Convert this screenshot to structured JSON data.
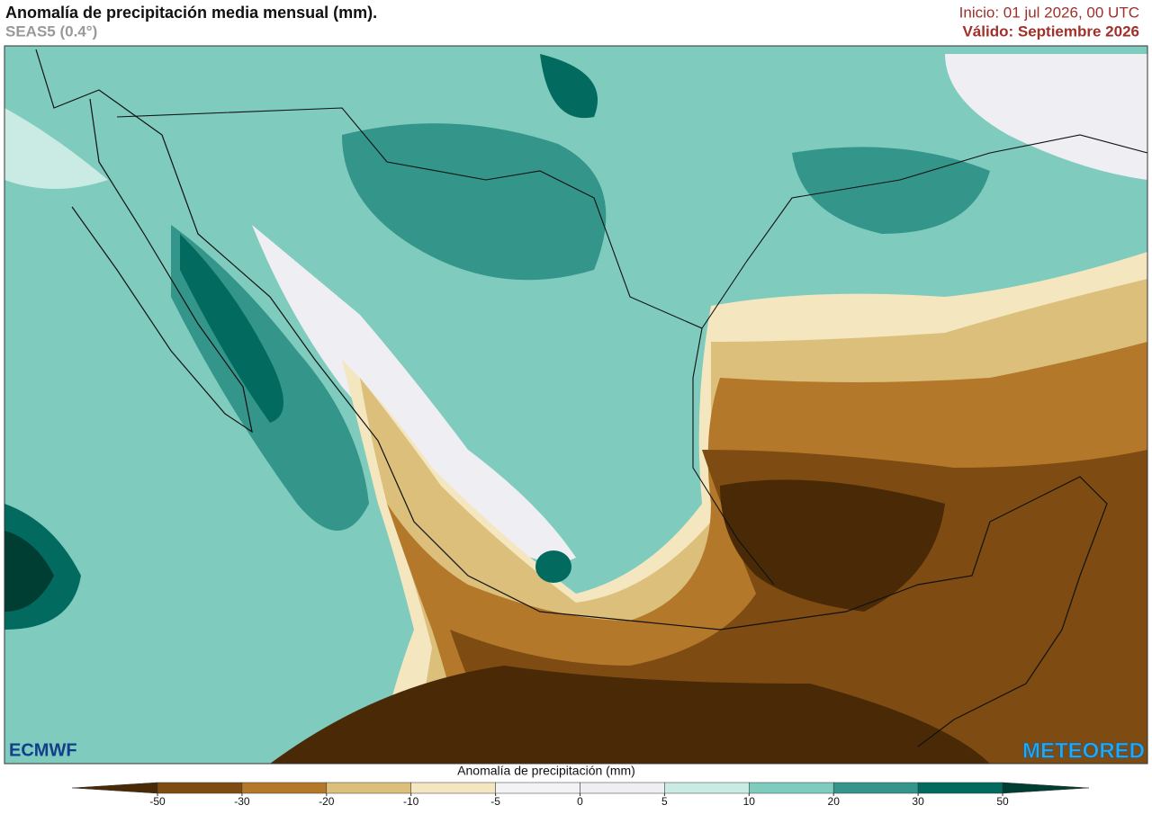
{
  "header": {
    "title": "Anomalía de precipitación media mensual (mm).",
    "subtitle": "SEAS5 (0.4°)",
    "init": "Inicio: 01 jul 2026, 00 UTC",
    "valid": "Válido: Septiembre 2026"
  },
  "logos": {
    "left": "ECMWF",
    "right": "METEORED"
  },
  "colorbar": {
    "title": "Anomalía de precipitación (mm)",
    "ticks": [
      -50,
      -30,
      -20,
      -10,
      -5,
      0,
      5,
      10,
      20,
      30,
      50
    ],
    "colors": [
      "#4a2a06",
      "#7e4c12",
      "#b3782a",
      "#dcbf7a",
      "#f4e6bf",
      "#f3f3f5",
      "#eeeef3",
      "#c9ebe4",
      "#7fcbbd",
      "#34958b",
      "#036a60",
      "#003d32"
    ]
  }
}
